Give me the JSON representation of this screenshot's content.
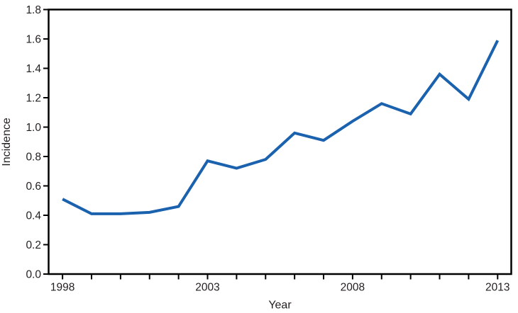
{
  "page": {
    "background": "#ffffff"
  },
  "chart_data": {
    "type": "line",
    "title": "",
    "xlabel": "Year",
    "ylabel": "Incidence",
    "x": [
      1998,
      1999,
      2000,
      2001,
      2002,
      2003,
      2004,
      2005,
      2006,
      2007,
      2008,
      2009,
      2010,
      2011,
      2012,
      2013
    ],
    "values": [
      0.51,
      0.41,
      0.41,
      0.42,
      0.46,
      0.77,
      0.72,
      0.78,
      0.96,
      0.91,
      1.04,
      1.16,
      1.09,
      1.36,
      1.19,
      1.59
    ],
    "x_ticks": [
      1998,
      1999,
      2000,
      2001,
      2002,
      2003,
      2004,
      2005,
      2006,
      2007,
      2008,
      2009,
      2010,
      2011,
      2012,
      2013
    ],
    "x_tick_labels": [
      "1998",
      "",
      "",
      "",
      "",
      "2003",
      "",
      "",
      "",
      "",
      "2008",
      "",
      "",
      "",
      "",
      "2013"
    ],
    "y_ticks": [
      0.0,
      0.2,
      0.4,
      0.6,
      0.8,
      1.0,
      1.2,
      1.4,
      1.6,
      1.8
    ],
    "y_tick_labels": [
      "0.0",
      "0.2",
      "0.4",
      "0.6",
      "0.8",
      "1.0",
      "1.2",
      "1.4",
      "1.6",
      "1.8"
    ],
    "xlim": [
      1997.52,
      2013.47
    ],
    "ylim": [
      0,
      1.8
    ],
    "grid": false,
    "frame": "box",
    "legend": null,
    "line_color": "#1b62ae",
    "axis_color": "#000000",
    "text_color": "#231f20",
    "line_width": 4
  }
}
